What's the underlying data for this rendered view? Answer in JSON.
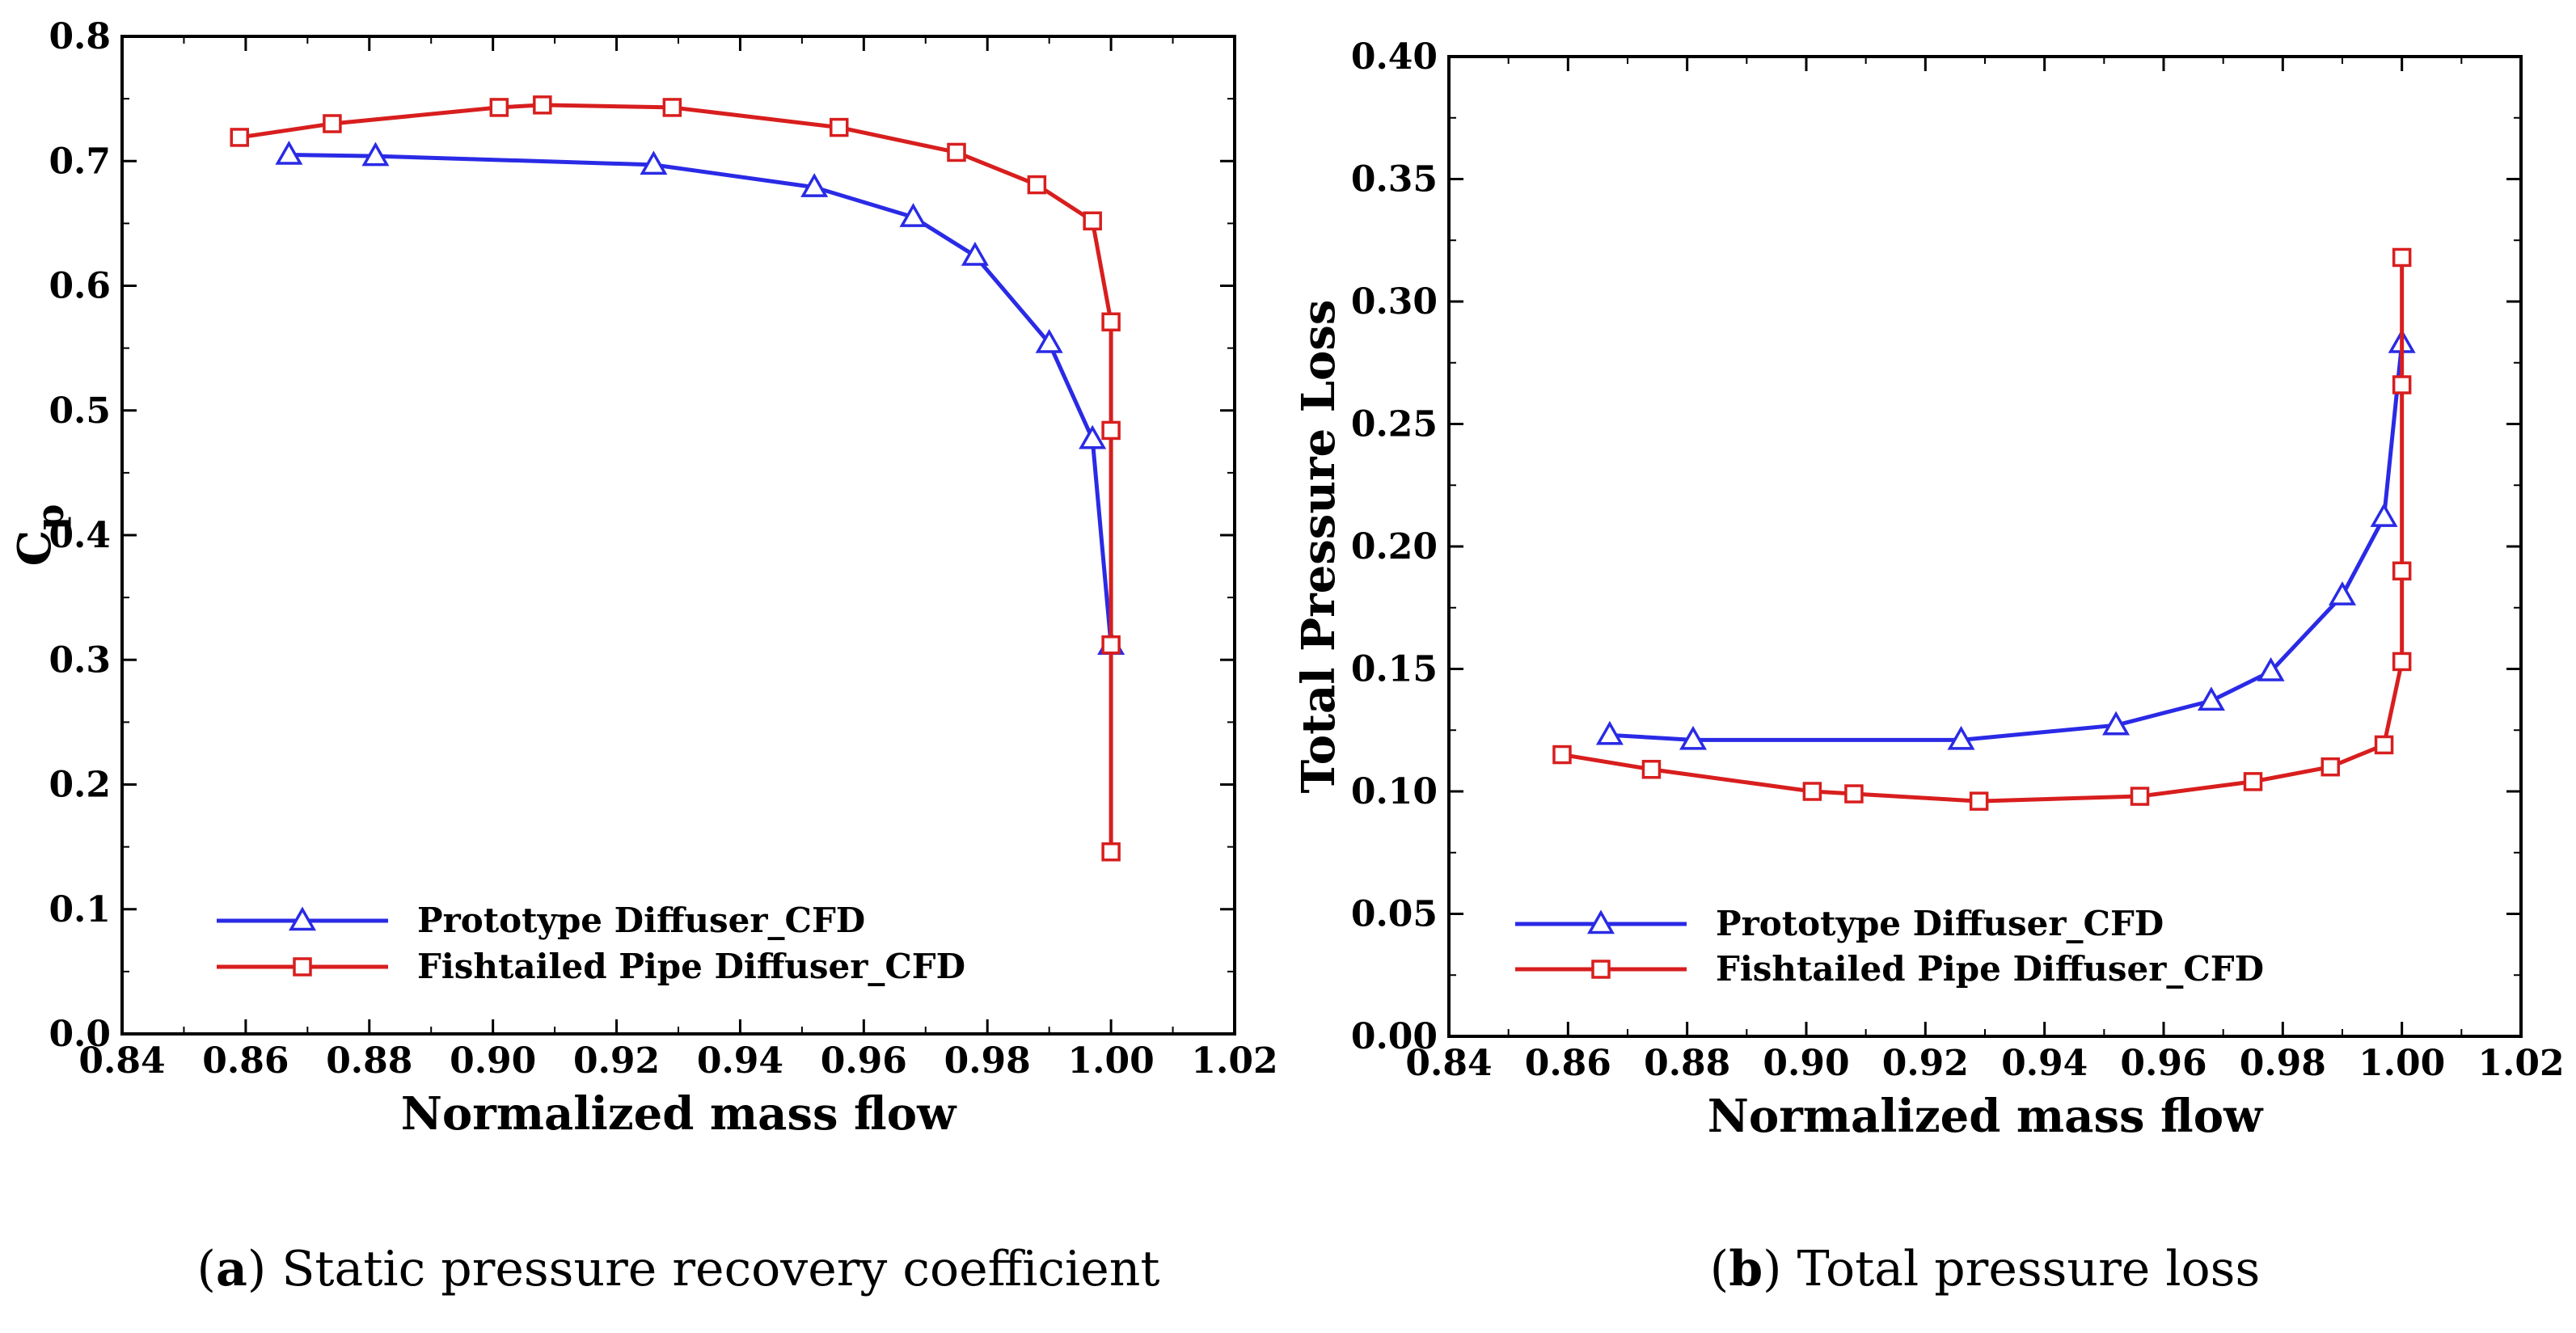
{
  "chart_data": [
    {
      "type": "line",
      "panel": "a",
      "caption_letter": "a",
      "caption_text": "Static pressure recovery coefficient",
      "xlabel": "Normalized mass flow",
      "ylabel_main": "C",
      "ylabel_sub": "p",
      "xlim": [
        0.84,
        1.02
      ],
      "ylim": [
        0.0,
        0.8
      ],
      "xticks": [
        0.84,
        0.86,
        0.88,
        0.9,
        0.92,
        0.94,
        0.96,
        0.98,
        1.0,
        1.02
      ],
      "yticks": [
        0.0,
        0.1,
        0.2,
        0.3,
        0.4,
        0.5,
        0.6,
        0.7,
        0.8
      ],
      "xtick_labels": [
        "0.84",
        "0.86",
        "0.88",
        "0.90",
        "0.92",
        "0.94",
        "0.96",
        "0.98",
        "1.00",
        "1.02"
      ],
      "ytick_labels": [
        "0.0",
        "0.1",
        "0.2",
        "0.3",
        "0.4",
        "0.5",
        "0.6",
        "0.7",
        "0.8"
      ],
      "legend_position": "bottom-left",
      "series": [
        {
          "name": "Prototype Diffuser_CFD",
          "color": "#2a2ae6",
          "marker": "triangle",
          "x": [
            0.867,
            0.881,
            0.926,
            0.952,
            0.968,
            0.978,
            0.99,
            0.997,
            1.0
          ],
          "y": [
            0.705,
            0.704,
            0.697,
            0.679,
            0.655,
            0.624,
            0.554,
            0.477,
            0.312
          ]
        },
        {
          "name": "Fishtailed Pipe Diffuser_CFD",
          "color": "#d81e1e",
          "marker": "square",
          "x": [
            0.859,
            0.874,
            0.901,
            0.908,
            0.929,
            0.956,
            0.975,
            0.988,
            0.997,
            1.0,
            1.0,
            1.0,
            1.0
          ],
          "y": [
            0.719,
            0.73,
            0.743,
            0.745,
            0.743,
            0.727,
            0.707,
            0.681,
            0.652,
            0.571,
            0.484,
            0.312,
            0.146
          ]
        }
      ]
    },
    {
      "type": "line",
      "panel": "b",
      "caption_letter": "b",
      "caption_text": "Total pressure loss",
      "xlabel": "Normalized mass flow",
      "ylabel_main": "Total Pressure Loss",
      "ylabel_sub": "",
      "xlim": [
        0.84,
        1.02
      ],
      "ylim": [
        0.0,
        0.4
      ],
      "xticks": [
        0.84,
        0.86,
        0.88,
        0.9,
        0.92,
        0.94,
        0.96,
        0.98,
        1.0,
        1.02
      ],
      "yticks": [
        0.0,
        0.05,
        0.1,
        0.15,
        0.2,
        0.25,
        0.3,
        0.35,
        0.4
      ],
      "xtick_labels": [
        "0.84",
        "0.86",
        "0.88",
        "0.90",
        "0.92",
        "0.94",
        "0.96",
        "0.98",
        "1.00",
        "1.02"
      ],
      "ytick_labels": [
        "0.00",
        "0.05",
        "0.10",
        "0.15",
        "0.20",
        "0.25",
        "0.30",
        "0.35",
        "0.40"
      ],
      "legend_position": "bottom-left",
      "series": [
        {
          "name": "Prototype Diffuser_CFD",
          "color": "#2a2ae6",
          "marker": "triangle",
          "x": [
            0.867,
            0.881,
            0.926,
            0.952,
            0.968,
            0.978,
            0.99,
            0.997,
            1.0
          ],
          "y": [
            0.123,
            0.121,
            0.121,
            0.127,
            0.137,
            0.149,
            0.18,
            0.212,
            0.283
          ]
        },
        {
          "name": "Fishtailed Pipe Diffuser_CFD",
          "color": "#d81e1e",
          "marker": "square",
          "x": [
            0.859,
            0.874,
            0.901,
            0.908,
            0.929,
            0.956,
            0.975,
            0.988,
            0.997,
            1.0,
            1.0,
            1.0,
            1.0
          ],
          "y": [
            0.115,
            0.109,
            0.1,
            0.099,
            0.096,
            0.098,
            0.104,
            0.11,
            0.119,
            0.153,
            0.19,
            0.266,
            0.318
          ]
        }
      ]
    }
  ]
}
